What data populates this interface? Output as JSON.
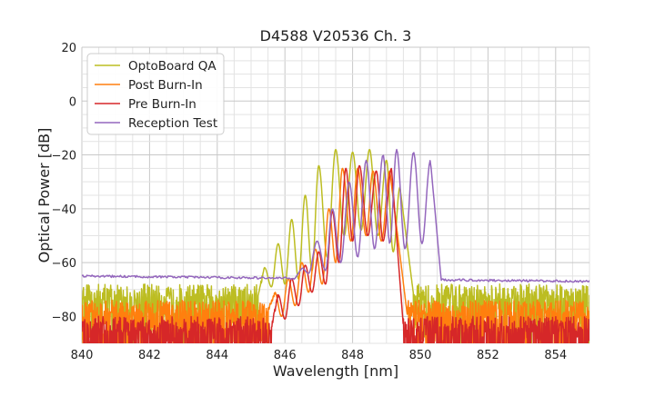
{
  "chart_data": {
    "type": "line",
    "title": "D4588 V20536 Ch. 3",
    "xlabel": "Wavelength [nm]",
    "ylabel": "Optical Power [dB]",
    "xlim": [
      840,
      855
    ],
    "ylim": [
      -90,
      20
    ],
    "x_ticks": [
      840,
      842,
      844,
      846,
      848,
      850,
      852,
      854
    ],
    "y_ticks": [
      20,
      0,
      -20,
      -40,
      -60,
      -80
    ],
    "x_tick_labels": [
      "840",
      "842",
      "844",
      "846",
      "848",
      "850",
      "852",
      "854"
    ],
    "y_tick_labels": [
      "20",
      "0",
      "−20",
      "−40",
      "−60",
      "−80"
    ],
    "grid": true,
    "legend_position": "top-left",
    "series": [
      {
        "name": "OptoBoard QA",
        "color": "#bcbd22",
        "noise_floor": -72,
        "spectrum": {
          "edge_left": 845.2,
          "edge_right": 849.8,
          "peaks": [
            {
              "x": 845.4,
              "y": -62
            },
            {
              "x": 845.8,
              "y": -53
            },
            {
              "x": 846.2,
              "y": -44
            },
            {
              "x": 846.6,
              "y": -35
            },
            {
              "x": 847.0,
              "y": -24
            },
            {
              "x": 847.5,
              "y": -18
            },
            {
              "x": 848.0,
              "y": -19
            },
            {
              "x": 848.5,
              "y": -18
            },
            {
              "x": 849.0,
              "y": -22
            },
            {
              "x": 849.4,
              "y": -32
            }
          ],
          "dips": [
            {
              "x": 845.6,
              "y": -69
            },
            {
              "x": 846.0,
              "y": -68
            },
            {
              "x": 846.4,
              "y": -66
            },
            {
              "x": 846.8,
              "y": -63
            },
            {
              "x": 847.25,
              "y": -58
            },
            {
              "x": 847.75,
              "y": -50
            },
            {
              "x": 848.25,
              "y": -48
            },
            {
              "x": 848.75,
              "y": -50
            },
            {
              "x": 849.2,
              "y": -56
            }
          ]
        }
      },
      {
        "name": "Post Burn-In",
        "color": "#ff7f0e",
        "noise_floor": -78,
        "spectrum": {
          "edge_left": 845.5,
          "edge_right": 849.6,
          "peaks": [
            {
              "x": 845.7,
              "y": -71
            },
            {
              "x": 846.1,
              "y": -66
            },
            {
              "x": 846.5,
              "y": -60
            },
            {
              "x": 846.9,
              "y": -55
            },
            {
              "x": 847.3,
              "y": -40
            },
            {
              "x": 847.7,
              "y": -25
            },
            {
              "x": 848.15,
              "y": -25
            },
            {
              "x": 848.6,
              "y": -26
            },
            {
              "x": 849.1,
              "y": -26
            }
          ],
          "dips": [
            {
              "x": 845.9,
              "y": -80
            },
            {
              "x": 846.3,
              "y": -76
            },
            {
              "x": 846.7,
              "y": -71
            },
            {
              "x": 847.1,
              "y": -68
            },
            {
              "x": 847.5,
              "y": -60
            },
            {
              "x": 847.95,
              "y": -52
            },
            {
              "x": 848.4,
              "y": -50
            },
            {
              "x": 848.85,
              "y": -52
            }
          ]
        }
      },
      {
        "name": "Pre Burn-In",
        "color": "#d62728",
        "noise_floor": -84,
        "spectrum": {
          "edge_left": 845.6,
          "edge_right": 849.5,
          "peaks": [
            {
              "x": 845.8,
              "y": -72
            },
            {
              "x": 846.2,
              "y": -66
            },
            {
              "x": 846.6,
              "y": -61
            },
            {
              "x": 847.0,
              "y": -56
            },
            {
              "x": 847.4,
              "y": -41
            },
            {
              "x": 847.8,
              "y": -25
            },
            {
              "x": 848.2,
              "y": -24
            },
            {
              "x": 848.7,
              "y": -26
            },
            {
              "x": 849.15,
              "y": -25
            }
          ],
          "dips": [
            {
              "x": 846.0,
              "y": -81
            },
            {
              "x": 846.4,
              "y": -76
            },
            {
              "x": 846.8,
              "y": -71
            },
            {
              "x": 847.2,
              "y": -68
            },
            {
              "x": 847.6,
              "y": -60
            },
            {
              "x": 848.0,
              "y": -52
            },
            {
              "x": 848.45,
              "y": -50
            },
            {
              "x": 848.9,
              "y": -52
            }
          ]
        }
      },
      {
        "name": "Reception Test",
        "color": "#9467bd",
        "baseline_left": -65,
        "baseline_right": -67,
        "spectrum": {
          "edge_left": 846.3,
          "edge_right": 850.6,
          "peaks": [
            {
              "x": 846.5,
              "y": -62
            },
            {
              "x": 846.95,
              "y": -52
            },
            {
              "x": 847.4,
              "y": -40
            },
            {
              "x": 847.9,
              "y": -30
            },
            {
              "x": 848.4,
              "y": -22
            },
            {
              "x": 848.9,
              "y": -20
            },
            {
              "x": 849.3,
              "y": -18
            },
            {
              "x": 849.8,
              "y": -19
            },
            {
              "x": 850.3,
              "y": -22
            }
          ],
          "dips": [
            {
              "x": 846.7,
              "y": -64
            },
            {
              "x": 847.2,
              "y": -63
            },
            {
              "x": 847.65,
              "y": -60
            },
            {
              "x": 848.15,
              "y": -58
            },
            {
              "x": 848.65,
              "y": -55
            },
            {
              "x": 849.1,
              "y": -53
            },
            {
              "x": 849.55,
              "y": -55
            },
            {
              "x": 850.05,
              "y": -53
            }
          ]
        }
      }
    ]
  }
}
